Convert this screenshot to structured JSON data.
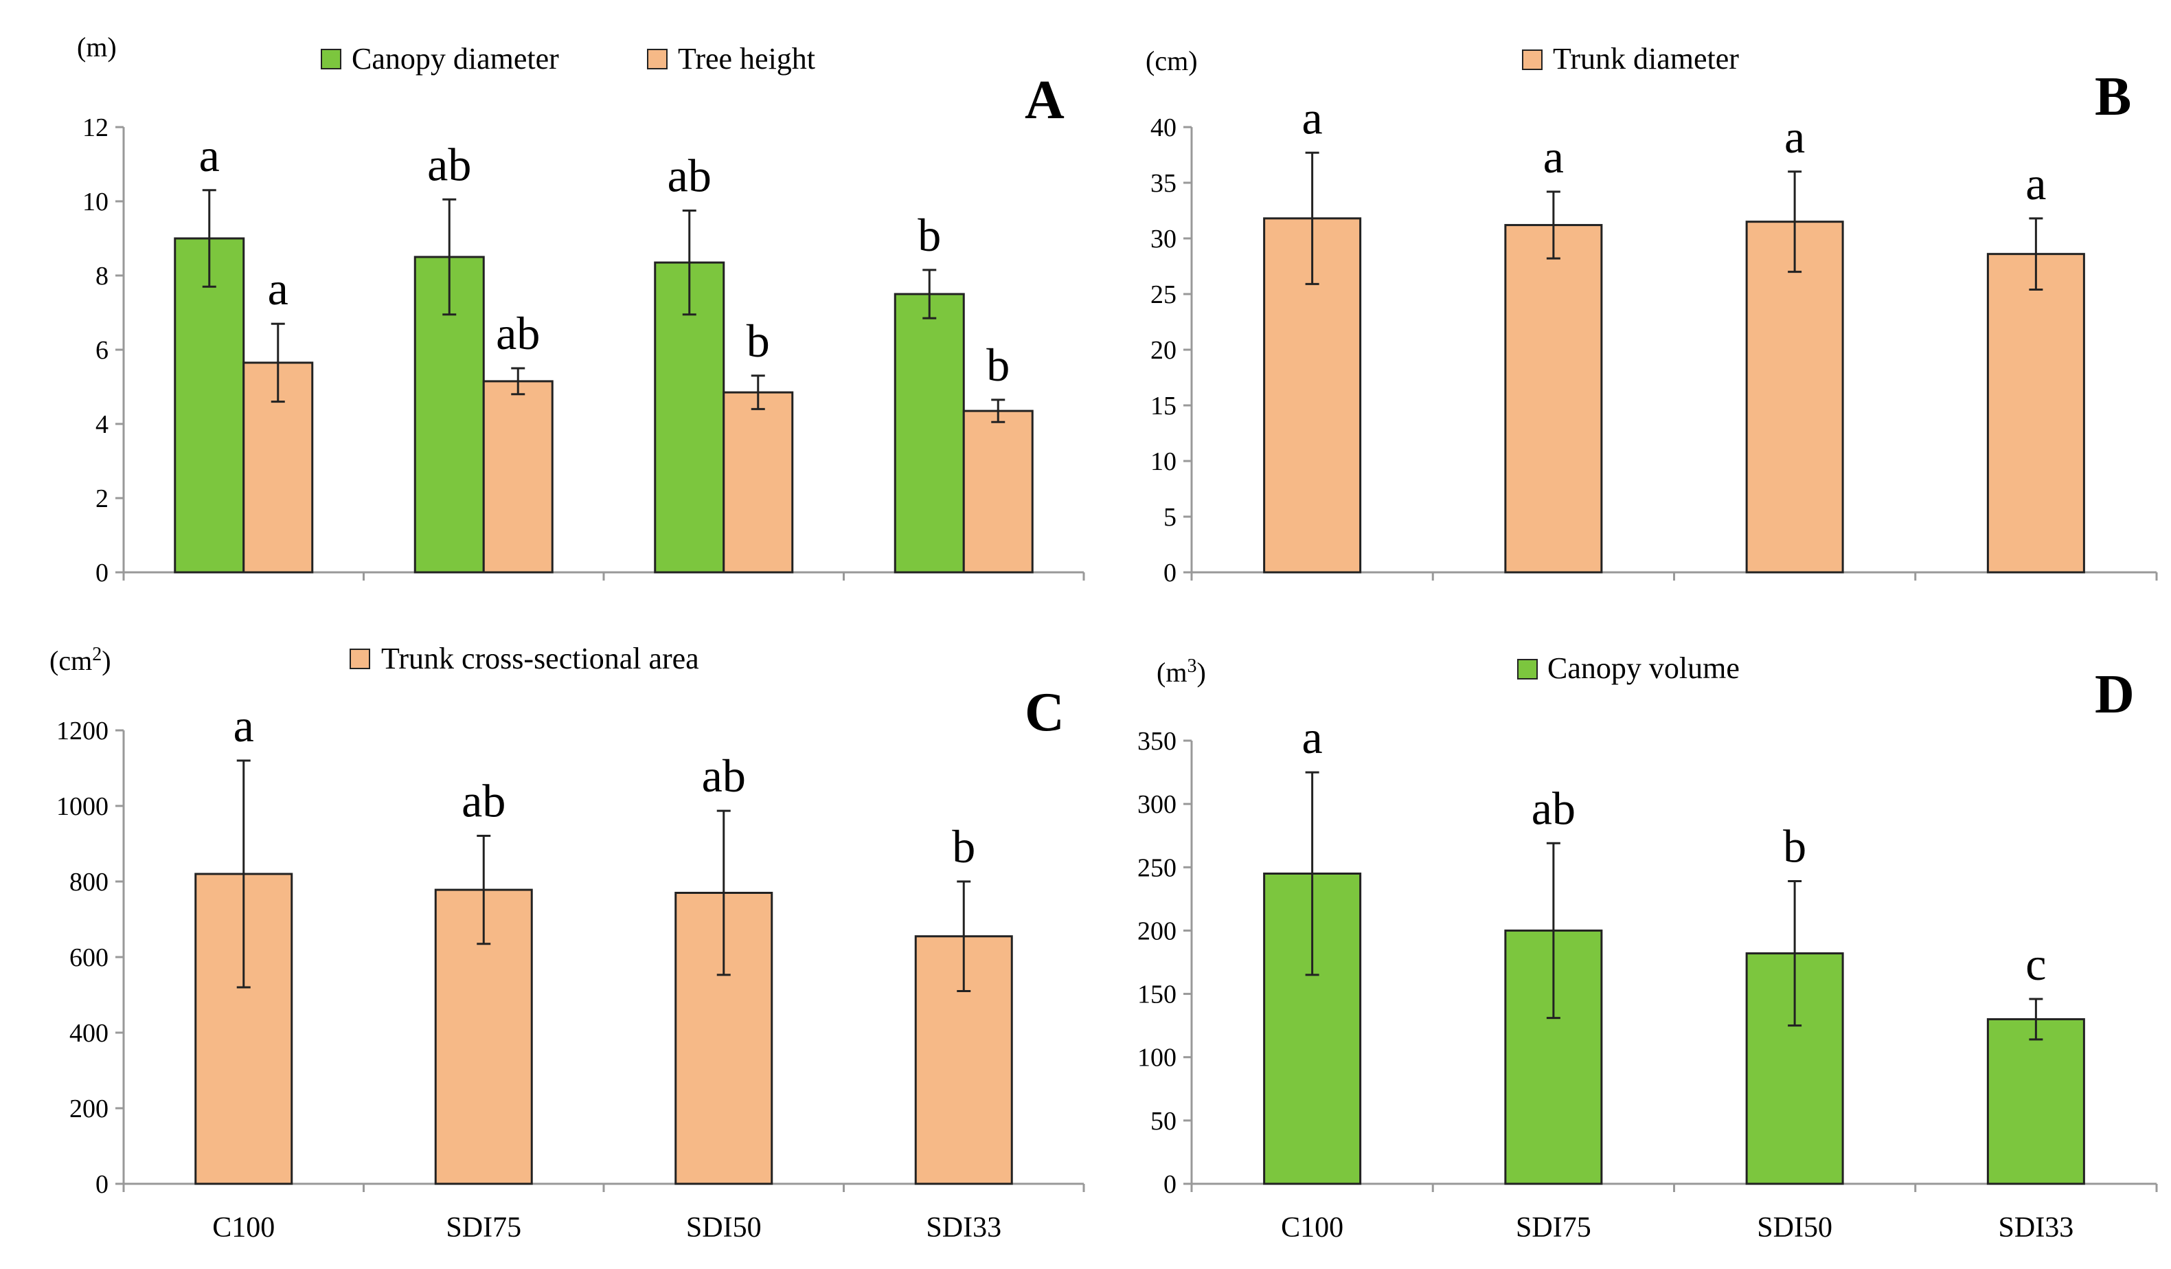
{
  "colors": {
    "green": "#7cc63e",
    "orange": "#f6b987",
    "stroke": "#222222",
    "axis": "#999999"
  },
  "chart_data": [
    {
      "panel": "A",
      "type": "bar",
      "unit": "(m)",
      "categories": [
        "C100",
        "SDI75",
        "SDI50",
        "SDI33"
      ],
      "show_categories": false,
      "ylim": [
        0,
        12
      ],
      "yticks": [
        0,
        2,
        4,
        6,
        8,
        10,
        12
      ],
      "grid": false,
      "legend": "top",
      "series": [
        {
          "name": "Canopy diameter",
          "color": "green",
          "values": [
            9.0,
            8.5,
            8.35,
            7.5
          ],
          "errors": [
            1.3,
            1.55,
            1.4,
            0.65
          ],
          "letters": [
            "a",
            "ab",
            "ab",
            "b"
          ]
        },
        {
          "name": "Tree height",
          "color": "orange",
          "values": [
            5.65,
            5.15,
            4.85,
            4.35
          ],
          "errors": [
            1.05,
            0.35,
            0.45,
            0.3
          ],
          "letters": [
            "a",
            "ab",
            "b",
            "b"
          ]
        }
      ]
    },
    {
      "panel": "B",
      "type": "bar",
      "unit": "(cm)",
      "categories": [
        "C100",
        "SDI75",
        "SDI50",
        "SDI33"
      ],
      "show_categories": false,
      "ylim": [
        0,
        40
      ],
      "yticks": [
        0,
        5,
        10,
        15,
        20,
        25,
        30,
        35,
        40
      ],
      "grid": false,
      "legend": "top",
      "series": [
        {
          "name": "Trunk diameter",
          "color": "orange",
          "values": [
            31.8,
            31.2,
            31.5,
            28.6
          ],
          "errors": [
            5.9,
            3.0,
            4.5,
            3.2
          ],
          "letters": [
            "a",
            "a",
            "a",
            "a"
          ]
        }
      ]
    },
    {
      "panel": "C",
      "type": "bar",
      "unit": "(cm",
      "unit_sup": "2",
      "unit_close": ")",
      "categories": [
        "C100",
        "SDI75",
        "SDI50",
        "SDI33"
      ],
      "show_categories": true,
      "ylim": [
        0,
        1200
      ],
      "yticks": [
        0,
        200,
        400,
        600,
        800,
        1000,
        1200
      ],
      "grid": false,
      "legend": "top",
      "series": [
        {
          "name": "Trunk cross-sectional area",
          "color": "orange",
          "values": [
            820,
            778,
            770,
            655
          ],
          "errors": [
            300,
            143,
            217,
            145
          ],
          "letters": [
            "a",
            "ab",
            "ab",
            "b"
          ]
        }
      ]
    },
    {
      "panel": "D",
      "type": "bar",
      "unit": "(m",
      "unit_sup": "3",
      "unit_close": ")",
      "categories": [
        "C100",
        "SDI75",
        "SDI50",
        "SDI33"
      ],
      "show_categories": true,
      "ylim": [
        0,
        350
      ],
      "yticks": [
        0,
        50,
        100,
        150,
        200,
        250,
        300,
        350
      ],
      "grid": false,
      "legend": "top",
      "series": [
        {
          "name": "Canopy volume",
          "color": "green",
          "values": [
            245,
            200,
            182,
            130
          ],
          "errors": [
            80,
            69,
            57,
            16
          ],
          "letters": [
            "a",
            "ab",
            "b",
            "c"
          ]
        }
      ]
    }
  ]
}
